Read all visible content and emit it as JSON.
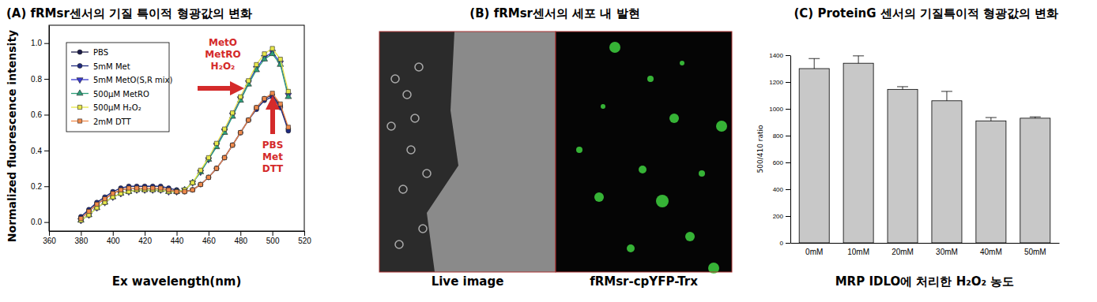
{
  "chart_data": [
    {
      "type": "line",
      "title": "(A) fRMsr센서의 기질 특이적 형광값의 변화",
      "x_label": "Ex wavelength(nm)",
      "y_label": "Normalized fluorescence intensity",
      "x": [
        380,
        385,
        390,
        395,
        400,
        405,
        410,
        415,
        420,
        425,
        430,
        435,
        440,
        445,
        450,
        455,
        460,
        465,
        470,
        475,
        480,
        485,
        490,
        495,
        500,
        505,
        510
      ],
      "series": [
        {
          "name": "PBS",
          "color": "#1c1c4a",
          "marker": "circle",
          "values": [
            0.02,
            0.06,
            0.1,
            0.13,
            0.16,
            0.18,
            0.19,
            0.19,
            0.19,
            0.19,
            0.19,
            0.18,
            0.17,
            0.17,
            0.18,
            0.21,
            0.25,
            0.3,
            0.36,
            0.43,
            0.5,
            0.57,
            0.64,
            0.69,
            0.71,
            0.65,
            0.52
          ]
        },
        {
          "name": "5mM Met",
          "color": "#1f2a80",
          "marker": "circle",
          "values": [
            0.03,
            0.07,
            0.11,
            0.14,
            0.17,
            0.19,
            0.2,
            0.2,
            0.2,
            0.2,
            0.2,
            0.19,
            0.18,
            0.17,
            0.18,
            0.21,
            0.25,
            0.3,
            0.36,
            0.43,
            0.5,
            0.57,
            0.63,
            0.68,
            0.7,
            0.64,
            0.51
          ]
        },
        {
          "name": "5mM MetO(S,R mix)",
          "color": "#3a3ad0",
          "marker": "triangle-down",
          "values": [
            0.01,
            0.04,
            0.08,
            0.11,
            0.14,
            0.16,
            0.17,
            0.18,
            0.18,
            0.18,
            0.18,
            0.17,
            0.17,
            0.18,
            0.22,
            0.28,
            0.35,
            0.43,
            0.51,
            0.6,
            0.69,
            0.78,
            0.86,
            0.92,
            0.95,
            0.89,
            0.71
          ]
        },
        {
          "name": "500μM MetRO",
          "color": "#2e9e7a",
          "marker": "triangle-up",
          "values": [
            0.01,
            0.04,
            0.08,
            0.11,
            0.14,
            0.16,
            0.17,
            0.18,
            0.18,
            0.18,
            0.18,
            0.17,
            0.17,
            0.18,
            0.22,
            0.28,
            0.35,
            0.42,
            0.5,
            0.59,
            0.68,
            0.77,
            0.85,
            0.91,
            0.94,
            0.88,
            0.7
          ]
        },
        {
          "name": "500μM H₂O₂",
          "color": "#e8e84a",
          "marker": "square",
          "values": [
            0.01,
            0.04,
            0.08,
            0.11,
            0.14,
            0.16,
            0.17,
            0.18,
            0.18,
            0.18,
            0.18,
            0.17,
            0.17,
            0.18,
            0.22,
            0.29,
            0.36,
            0.44,
            0.52,
            0.61,
            0.7,
            0.79,
            0.88,
            0.94,
            0.97,
            0.91,
            0.73
          ]
        },
        {
          "name": "2mM DTT",
          "color": "#f08a4b",
          "marker": "square",
          "values": [
            0.02,
            0.06,
            0.1,
            0.13,
            0.16,
            0.18,
            0.19,
            0.19,
            0.19,
            0.19,
            0.19,
            0.18,
            0.17,
            0.17,
            0.18,
            0.21,
            0.25,
            0.3,
            0.36,
            0.43,
            0.5,
            0.57,
            0.64,
            0.69,
            0.72,
            0.66,
            0.53
          ]
        }
      ],
      "xlim": [
        360,
        520
      ],
      "xticks": [
        360,
        380,
        400,
        420,
        440,
        460,
        480,
        500,
        520
      ],
      "ylim": [
        -0.05,
        1.1
      ],
      "yticks": [
        {
          "value": 0,
          "label": "0.0"
        },
        {
          "value": 0.2,
          "label": "0.2"
        },
        {
          "value": 0.4,
          "label": "0.4"
        },
        {
          "value": 0.6,
          "label": "0.6"
        },
        {
          "value": 0.8,
          "label": "0.8"
        },
        {
          "value": 1,
          "label": "1.0"
        }
      ],
      "grid": false,
      "legend": "upper left",
      "annotations": [
        [
          "MetO",
          "MetRO",
          "H₂O₂"
        ],
        [
          "PBS",
          "Met",
          "DTT"
        ]
      ]
    },
    {
      "type": "image",
      "title": "(B) fRMsr센서의 세포 내 발현",
      "labels": [
        "Live image",
        "fRMsr-cpYFP-Trx"
      ]
    },
    {
      "type": "bar",
      "title": "(C) ProteinG 센서의 기질특이적 형광값의 변화",
      "x_label": "MRP IDLO에 처리한 H₂O₂ 농도",
      "y_label": "500/410 ratio",
      "categories": [
        "0mM",
        "10mM",
        "20mM",
        "30mM",
        "40mM",
        "50mM"
      ],
      "values": [
        1300,
        1340,
        1145,
        1060,
        910,
        930
      ],
      "errors": [
        75,
        55,
        20,
        70,
        25,
        10
      ],
      "color": "#c8c8c8",
      "ylim": [
        0,
        1400
      ],
      "yticks": [
        0,
        200,
        400,
        600,
        800,
        1000,
        1200,
        1400
      ],
      "grid": false
    }
  ]
}
